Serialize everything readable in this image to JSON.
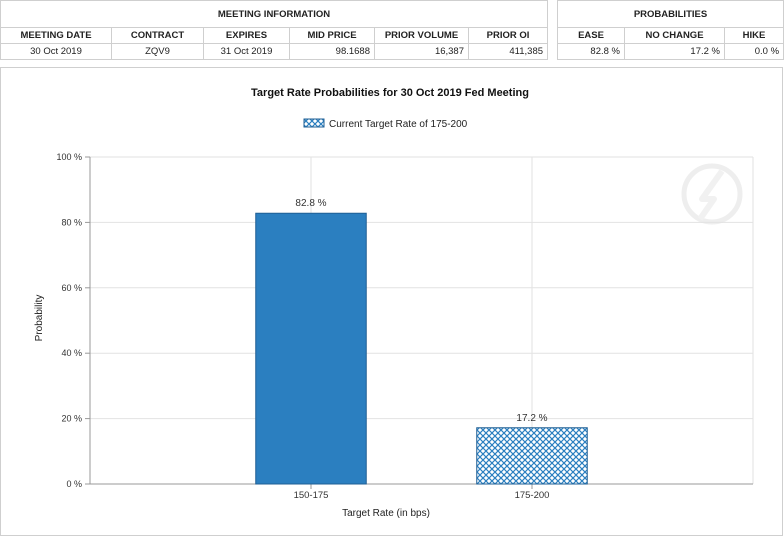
{
  "meeting_table": {
    "group_header": "MEETING INFORMATION",
    "columns": [
      "MEETING DATE",
      "CONTRACT",
      "EXPIRES",
      "MID PRICE",
      "PRIOR VOLUME",
      "PRIOR OI"
    ],
    "row": [
      "30 Oct 2019",
      "ZQV9",
      "31 Oct 2019",
      "98.1688",
      "16,387",
      "411,385"
    ]
  },
  "probabilities_table": {
    "group_header": "PROBABILITIES",
    "columns": [
      "EASE",
      "NO CHANGE",
      "HIKE"
    ],
    "row": [
      "82.8 %",
      "17.2 %",
      "0.0 %"
    ]
  },
  "chart_data": {
    "type": "bar",
    "title": "Target Rate Probabilities for 30 Oct 2019 Fed Meeting",
    "legend": {
      "label": "Current Target Rate of 175-200",
      "placement": "top-center"
    },
    "categories": [
      "150-175",
      "175-200"
    ],
    "values": [
      82.8,
      17.2
    ],
    "data_labels": [
      "82.8 %",
      "17.2 %"
    ],
    "current_target_category": "175-200",
    "xlabel": "Target Rate (in bps)",
    "ylabel": "Probability",
    "ylim": [
      0,
      100
    ],
    "yticks": [
      0,
      20,
      40,
      60,
      80,
      100
    ],
    "ytick_labels": [
      "0 %",
      "20 %",
      "40 %",
      "60 %",
      "80 %",
      "100 %"
    ],
    "grid": true,
    "colors": {
      "bar": "#2b7fc0",
      "bar_edge": "#1f5f94",
      "hatch": "#2b7fc0",
      "grid": "#e2e2e2"
    }
  }
}
